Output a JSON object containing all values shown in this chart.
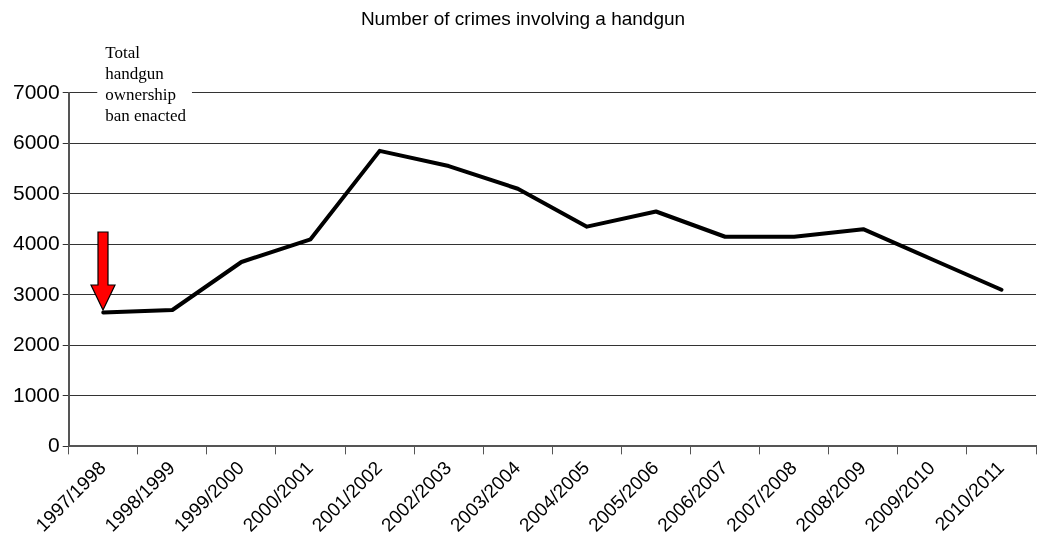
{
  "chart_data": {
    "type": "line",
    "title": "Number of crimes involving a handgun",
    "categories": [
      "1997/1998",
      "1998/1999",
      "1999/2000",
      "2000/2001",
      "2001/2002",
      "2002/2003",
      "2003/2004",
      "2004/2005",
      "2005/2006",
      "2006/2007",
      "2007/2008",
      "2008/2009",
      "2009/2010",
      "2010/2011"
    ],
    "series": [
      {
        "color": "#000000",
        "values": [
          2650,
          2700,
          3650,
          4100,
          5850,
          5550,
          5100,
          4350,
          4650,
          4150,
          4150,
          4300,
          3700,
          3100
        ]
      }
    ],
    "ylim": [
      0,
      7000
    ],
    "yticks": [
      0,
      1000,
      2000,
      3000,
      4000,
      5000,
      6000,
      7000
    ],
    "grid": "y",
    "legend": false,
    "marker": "none",
    "annotations": [
      "Total handgun ownership ban enacted"
    ]
  }
}
